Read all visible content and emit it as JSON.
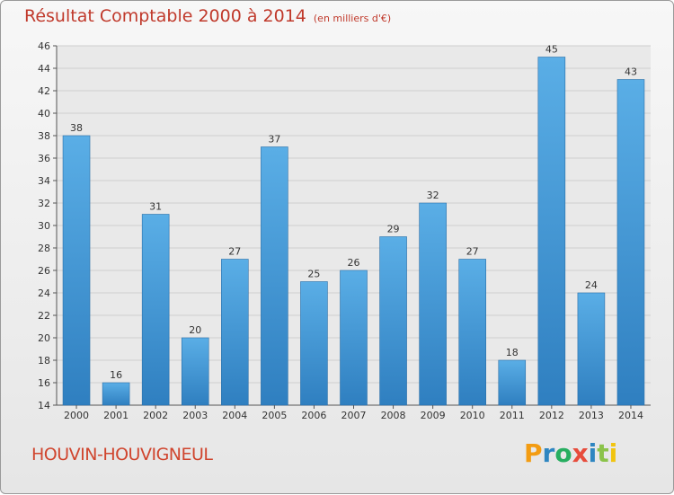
{
  "chart_data": {
    "type": "bar",
    "title": "Résultat Comptable 2000 à 2014",
    "subtitle": "(en milliers d'€)",
    "categories": [
      "2000",
      "2001",
      "2002",
      "2003",
      "2004",
      "2005",
      "2006",
      "2007",
      "2008",
      "2009",
      "2010",
      "2011",
      "2012",
      "2013",
      "2014"
    ],
    "values": [
      38,
      16,
      31,
      20,
      27,
      37,
      25,
      26,
      29,
      32,
      27,
      18,
      45,
      24,
      43
    ],
    "ylim": [
      14,
      46
    ],
    "yticks": [
      14,
      16,
      18,
      20,
      22,
      24,
      26,
      28,
      30,
      32,
      34,
      36,
      38,
      40,
      42,
      44,
      46
    ],
    "grid": true,
    "bar_color": "#4fa3df"
  },
  "footer": {
    "town": "HOUVIN-HOUVIGNEUL",
    "logo_letters": [
      "P",
      "r",
      "o",
      "x",
      "i",
      "t",
      "i"
    ],
    "logo_colors": [
      "#f39c12",
      "#2e86c1",
      "#27ae60",
      "#e74c3c",
      "#2e86c1",
      "#8bc34a",
      "#f1c40f"
    ]
  }
}
